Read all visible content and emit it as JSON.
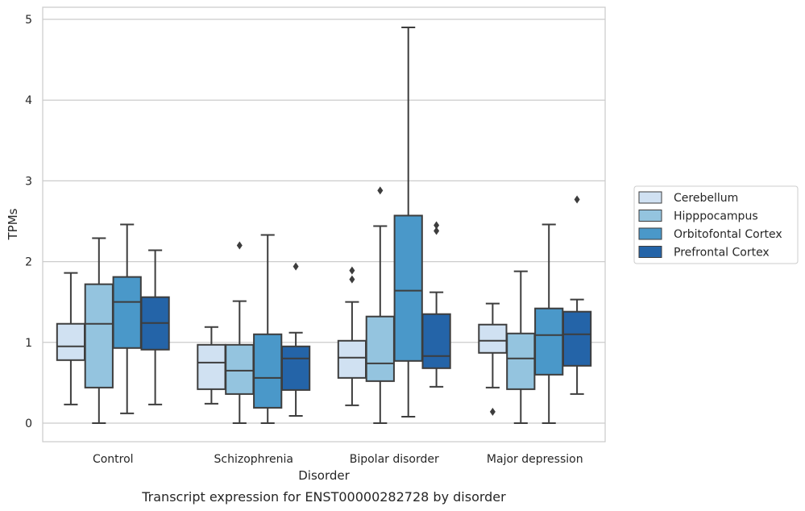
{
  "chart_data": {
    "type": "boxplot",
    "caption": "Transcript expression for ENST00000282728 by disorder",
    "xlabel": "Disorder",
    "ylabel": "TPMs",
    "ylim": [
      -0.23,
      5.15
    ],
    "yticks": [
      0,
      1,
      2,
      3,
      4,
      5
    ],
    "grid": true,
    "legend_position": "right",
    "categories": [
      "Control",
      "Schizophrenia",
      "Bipolar disorder",
      "Major depression"
    ],
    "series": [
      {
        "name": "Cerebellum",
        "color": "#d0e1f2",
        "boxes": [
          {
            "whislo": 0.23,
            "q1": 0.78,
            "med": 0.95,
            "q3": 1.23,
            "whishi": 1.86,
            "fliers": []
          },
          {
            "whislo": 0.24,
            "q1": 0.42,
            "med": 0.75,
            "q3": 0.97,
            "whishi": 1.19,
            "fliers": []
          },
          {
            "whislo": 0.22,
            "q1": 0.56,
            "med": 0.81,
            "q3": 1.02,
            "whishi": 1.5,
            "fliers": [
              1.78,
              1.89
            ]
          },
          {
            "whislo": 0.44,
            "q1": 0.87,
            "med": 1.02,
            "q3": 1.22,
            "whishi": 1.48,
            "fliers": [
              0.14
            ]
          }
        ]
      },
      {
        "name": "Hipppocampus",
        "color": "#94c4df",
        "boxes": [
          {
            "whislo": 0.0,
            "q1": 0.44,
            "med": 1.23,
            "q3": 1.72,
            "whishi": 2.29,
            "fliers": []
          },
          {
            "whislo": 0.0,
            "q1": 0.36,
            "med": 0.65,
            "q3": 0.97,
            "whishi": 1.51,
            "fliers": [
              2.2
            ]
          },
          {
            "whislo": 0.0,
            "q1": 0.52,
            "med": 0.74,
            "q3": 1.32,
            "whishi": 2.44,
            "fliers": [
              2.88
            ]
          },
          {
            "whislo": 0.0,
            "q1": 0.42,
            "med": 0.8,
            "q3": 1.11,
            "whishi": 1.88,
            "fliers": []
          }
        ]
      },
      {
        "name": "Orbitofontal Cortex",
        "color": "#4a98c9",
        "boxes": [
          {
            "whislo": 0.12,
            "q1": 0.93,
            "med": 1.5,
            "q3": 1.81,
            "whishi": 2.46,
            "fliers": []
          },
          {
            "whislo": 0.0,
            "q1": 0.19,
            "med": 0.56,
            "q3": 1.1,
            "whishi": 2.33,
            "fliers": []
          },
          {
            "whislo": 0.08,
            "q1": 0.77,
            "med": 1.64,
            "q3": 2.57,
            "whishi": 4.9,
            "fliers": []
          },
          {
            "whislo": 0.0,
            "q1": 0.6,
            "med": 1.09,
            "q3": 1.42,
            "whishi": 2.46,
            "fliers": []
          }
        ]
      },
      {
        "name": "Prefrontal Cortex",
        "color": "#2464a8",
        "boxes": [
          {
            "whislo": 0.23,
            "q1": 0.91,
            "med": 1.24,
            "q3": 1.56,
            "whishi": 2.14,
            "fliers": []
          },
          {
            "whislo": 0.09,
            "q1": 0.41,
            "med": 0.8,
            "q3": 0.95,
            "whishi": 1.12,
            "fliers": [
              1.94
            ]
          },
          {
            "whislo": 0.45,
            "q1": 0.68,
            "med": 0.83,
            "q3": 1.35,
            "whishi": 1.62,
            "fliers": [
              2.38,
              2.45
            ]
          },
          {
            "whislo": 0.36,
            "q1": 0.71,
            "med": 1.1,
            "q3": 1.38,
            "whishi": 1.53,
            "fliers": [
              2.77
            ]
          }
        ]
      }
    ]
  }
}
